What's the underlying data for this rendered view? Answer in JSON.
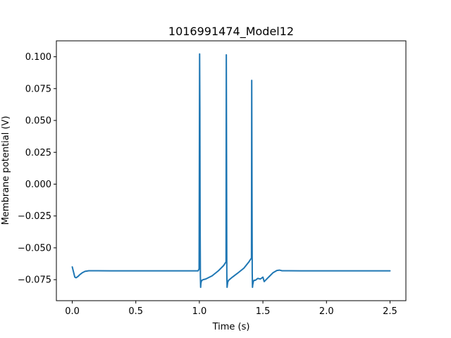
{
  "chart_data": {
    "type": "line",
    "title": "1016991474_Model12",
    "xlabel": "Time (s)",
    "ylabel": "Membrane potential (V)",
    "xlim": [
      -0.125,
      2.625
    ],
    "ylim": [
      -0.0915,
      0.1125
    ],
    "xticks": [
      0.0,
      0.5,
      1.0,
      1.5,
      2.0,
      2.5
    ],
    "xtick_labels": [
      "0.0",
      "0.5",
      "1.0",
      "1.5",
      "2.0",
      "2.5"
    ],
    "yticks": [
      -0.075,
      -0.05,
      -0.025,
      0.0,
      0.025,
      0.05,
      0.075,
      0.1
    ],
    "ytick_labels": [
      "−0.075",
      "−0.050",
      "−0.025",
      "0.000",
      "0.025",
      "0.050",
      "0.075",
      "0.100"
    ],
    "grid": false,
    "series": [
      {
        "color": "#1f77b4",
        "x": [
          0.0,
          0.01,
          0.02,
          0.03,
          0.045,
          0.06,
          0.08,
          0.1,
          0.13,
          0.16,
          0.2,
          0.3,
          0.5,
          0.8,
          0.99,
          0.998,
          1.002,
          1.004,
          1.006,
          1.008,
          1.01,
          1.012,
          1.015,
          1.02,
          1.03,
          1.05,
          1.1,
          1.15,
          1.19,
          1.21,
          1.212,
          1.214,
          1.216,
          1.218,
          1.22,
          1.223,
          1.23,
          1.26,
          1.3,
          1.35,
          1.39,
          1.41,
          1.412,
          1.414,
          1.416,
          1.418,
          1.42,
          1.425,
          1.43,
          1.44,
          1.46,
          1.48,
          1.5,
          1.51,
          1.52,
          1.55,
          1.58,
          1.61,
          1.63,
          1.65,
          1.7,
          1.8,
          2.0,
          2.2,
          2.5
        ],
        "y": [
          -0.065,
          -0.069,
          -0.073,
          -0.0735,
          -0.0725,
          -0.071,
          -0.0695,
          -0.0685,
          -0.068,
          -0.068,
          -0.068,
          -0.0681,
          -0.0681,
          -0.0681,
          -0.0681,
          -0.0665,
          0.1022,
          0.06,
          -0.03,
          -0.072,
          -0.081,
          -0.078,
          -0.0765,
          -0.0755,
          -0.075,
          -0.0745,
          -0.072,
          -0.068,
          -0.064,
          -0.061,
          0.1015,
          0.02,
          -0.07,
          -0.081,
          -0.0795,
          -0.077,
          -0.0755,
          -0.073,
          -0.07,
          -0.066,
          -0.061,
          -0.058,
          0.0815,
          0.0,
          -0.07,
          -0.081,
          -0.079,
          -0.0765,
          -0.0755,
          -0.0755,
          -0.074,
          -0.0745,
          -0.073,
          -0.0765,
          -0.0755,
          -0.0725,
          -0.0695,
          -0.0678,
          -0.0675,
          -0.068,
          -0.068,
          -0.0681,
          -0.0681,
          -0.0681,
          -0.0681
        ]
      }
    ]
  }
}
